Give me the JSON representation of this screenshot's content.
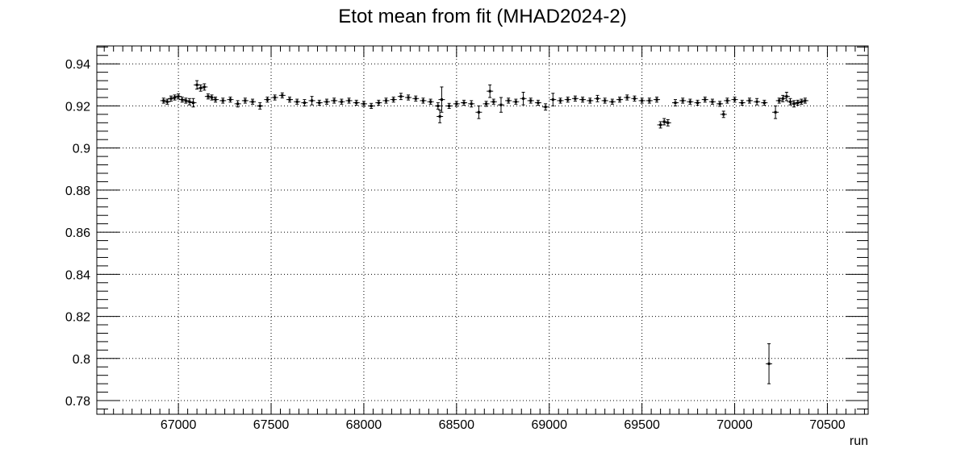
{
  "chart_data": {
    "type": "scatter",
    "title": "Etot mean from fit (MHAD2024-2)",
    "xlabel": "run",
    "ylabel": "",
    "xlim": [
      66560,
      70720
    ],
    "ylim": [
      0.7735,
      0.9485
    ],
    "grid": true,
    "x_ticks": [
      67000,
      67500,
      68000,
      68500,
      69000,
      69500,
      70000,
      70500
    ],
    "x_tick_labels": [
      "67000",
      "67500",
      "68000",
      "68500",
      "69000",
      "69500",
      "70000",
      "70500"
    ],
    "y_ticks": [
      0.78,
      0.8,
      0.82,
      0.84,
      0.86,
      0.88,
      0.9,
      0.92,
      0.94
    ],
    "y_tick_labels": [
      "0.78",
      "0.8",
      "0.82",
      "0.84",
      "0.86",
      "0.88",
      "0.9",
      "0.92",
      "0.94"
    ],
    "series": [
      {
        "color": "#000000",
        "points": [
          [
            66920,
            0.9225,
            0.0012
          ],
          [
            66940,
            0.922,
            0.0012
          ],
          [
            66960,
            0.9235,
            0.0012
          ],
          [
            66980,
            0.924,
            0.0012
          ],
          [
            67000,
            0.9245,
            0.0012
          ],
          [
            67020,
            0.923,
            0.0012
          ],
          [
            67040,
            0.9225,
            0.0012
          ],
          [
            67060,
            0.922,
            0.0015
          ],
          [
            67080,
            0.9215,
            0.002
          ],
          [
            67100,
            0.93,
            0.002
          ],
          [
            67120,
            0.9285,
            0.0015
          ],
          [
            67140,
            0.929,
            0.0015
          ],
          [
            67160,
            0.9245,
            0.0012
          ],
          [
            67180,
            0.924,
            0.0012
          ],
          [
            67200,
            0.923,
            0.0012
          ],
          [
            67240,
            0.9225,
            0.0012
          ],
          [
            67280,
            0.923,
            0.0012
          ],
          [
            67320,
            0.921,
            0.0015
          ],
          [
            67360,
            0.9225,
            0.0012
          ],
          [
            67400,
            0.922,
            0.0012
          ],
          [
            67440,
            0.92,
            0.0015
          ],
          [
            67480,
            0.923,
            0.0012
          ],
          [
            67520,
            0.924,
            0.0012
          ],
          [
            67560,
            0.925,
            0.0012
          ],
          [
            67600,
            0.923,
            0.0012
          ],
          [
            67640,
            0.922,
            0.0012
          ],
          [
            67680,
            0.9215,
            0.0015
          ],
          [
            67720,
            0.9225,
            0.002
          ],
          [
            67760,
            0.9215,
            0.0012
          ],
          [
            67800,
            0.922,
            0.0012
          ],
          [
            67840,
            0.9225,
            0.0012
          ],
          [
            67880,
            0.922,
            0.0012
          ],
          [
            67920,
            0.9225,
            0.0012
          ],
          [
            67960,
            0.9215,
            0.0012
          ],
          [
            68000,
            0.921,
            0.0012
          ],
          [
            68040,
            0.92,
            0.0012
          ],
          [
            68080,
            0.9215,
            0.0012
          ],
          [
            68120,
            0.9225,
            0.0012
          ],
          [
            68160,
            0.923,
            0.0012
          ],
          [
            68200,
            0.9245,
            0.0015
          ],
          [
            68240,
            0.924,
            0.0012
          ],
          [
            68280,
            0.9235,
            0.0012
          ],
          [
            68320,
            0.9225,
            0.0012
          ],
          [
            68360,
            0.922,
            0.0012
          ],
          [
            68400,
            0.92,
            0.0015
          ],
          [
            68410,
            0.915,
            0.003
          ],
          [
            68420,
            0.923,
            0.006
          ],
          [
            68460,
            0.92,
            0.0012
          ],
          [
            68500,
            0.921,
            0.0012
          ],
          [
            68540,
            0.9215,
            0.0012
          ],
          [
            68580,
            0.921,
            0.0015
          ],
          [
            68620,
            0.917,
            0.003
          ],
          [
            68660,
            0.921,
            0.0012
          ],
          [
            68680,
            0.927,
            0.003
          ],
          [
            68700,
            0.922,
            0.0012
          ],
          [
            68740,
            0.9205,
            0.0035
          ],
          [
            68780,
            0.9225,
            0.0012
          ],
          [
            68820,
            0.922,
            0.0012
          ],
          [
            68860,
            0.9235,
            0.003
          ],
          [
            68900,
            0.9225,
            0.0012
          ],
          [
            68940,
            0.9215,
            0.0012
          ],
          [
            68980,
            0.9195,
            0.0015
          ],
          [
            69020,
            0.923,
            0.003
          ],
          [
            69060,
            0.9225,
            0.0012
          ],
          [
            69100,
            0.923,
            0.0012
          ],
          [
            69140,
            0.9235,
            0.0012
          ],
          [
            69180,
            0.923,
            0.0012
          ],
          [
            69220,
            0.9225,
            0.0012
          ],
          [
            69260,
            0.9235,
            0.0015
          ],
          [
            69300,
            0.9225,
            0.0012
          ],
          [
            69340,
            0.922,
            0.0012
          ],
          [
            69380,
            0.923,
            0.0012
          ],
          [
            69420,
            0.924,
            0.0012
          ],
          [
            69460,
            0.9235,
            0.0012
          ],
          [
            69500,
            0.9225,
            0.0012
          ],
          [
            69540,
            0.9225,
            0.0012
          ],
          [
            69580,
            0.923,
            0.0012
          ],
          [
            69600,
            0.911,
            0.0015
          ],
          [
            69620,
            0.9125,
            0.0015
          ],
          [
            69640,
            0.912,
            0.0015
          ],
          [
            69680,
            0.9215,
            0.0015
          ],
          [
            69720,
            0.9225,
            0.0012
          ],
          [
            69760,
            0.922,
            0.0012
          ],
          [
            69800,
            0.9215,
            0.0012
          ],
          [
            69840,
            0.923,
            0.0012
          ],
          [
            69880,
            0.922,
            0.0012
          ],
          [
            69920,
            0.921,
            0.0012
          ],
          [
            69940,
            0.916,
            0.0015
          ],
          [
            69960,
            0.9225,
            0.0012
          ],
          [
            70000,
            0.923,
            0.0012
          ],
          [
            70040,
            0.9215,
            0.0012
          ],
          [
            70080,
            0.9225,
            0.0012
          ],
          [
            70120,
            0.922,
            0.0015
          ],
          [
            70160,
            0.9215,
            0.0012
          ],
          [
            70185,
            0.7975,
            0.0095
          ],
          [
            70220,
            0.917,
            0.003
          ],
          [
            70240,
            0.9225,
            0.0012
          ],
          [
            70260,
            0.9235,
            0.0015
          ],
          [
            70280,
            0.9245,
            0.002
          ],
          [
            70300,
            0.922,
            0.0015
          ],
          [
            70320,
            0.921,
            0.0015
          ],
          [
            70340,
            0.9215,
            0.0012
          ],
          [
            70360,
            0.922,
            0.0012
          ],
          [
            70380,
            0.9225,
            0.0012
          ]
        ]
      }
    ]
  }
}
